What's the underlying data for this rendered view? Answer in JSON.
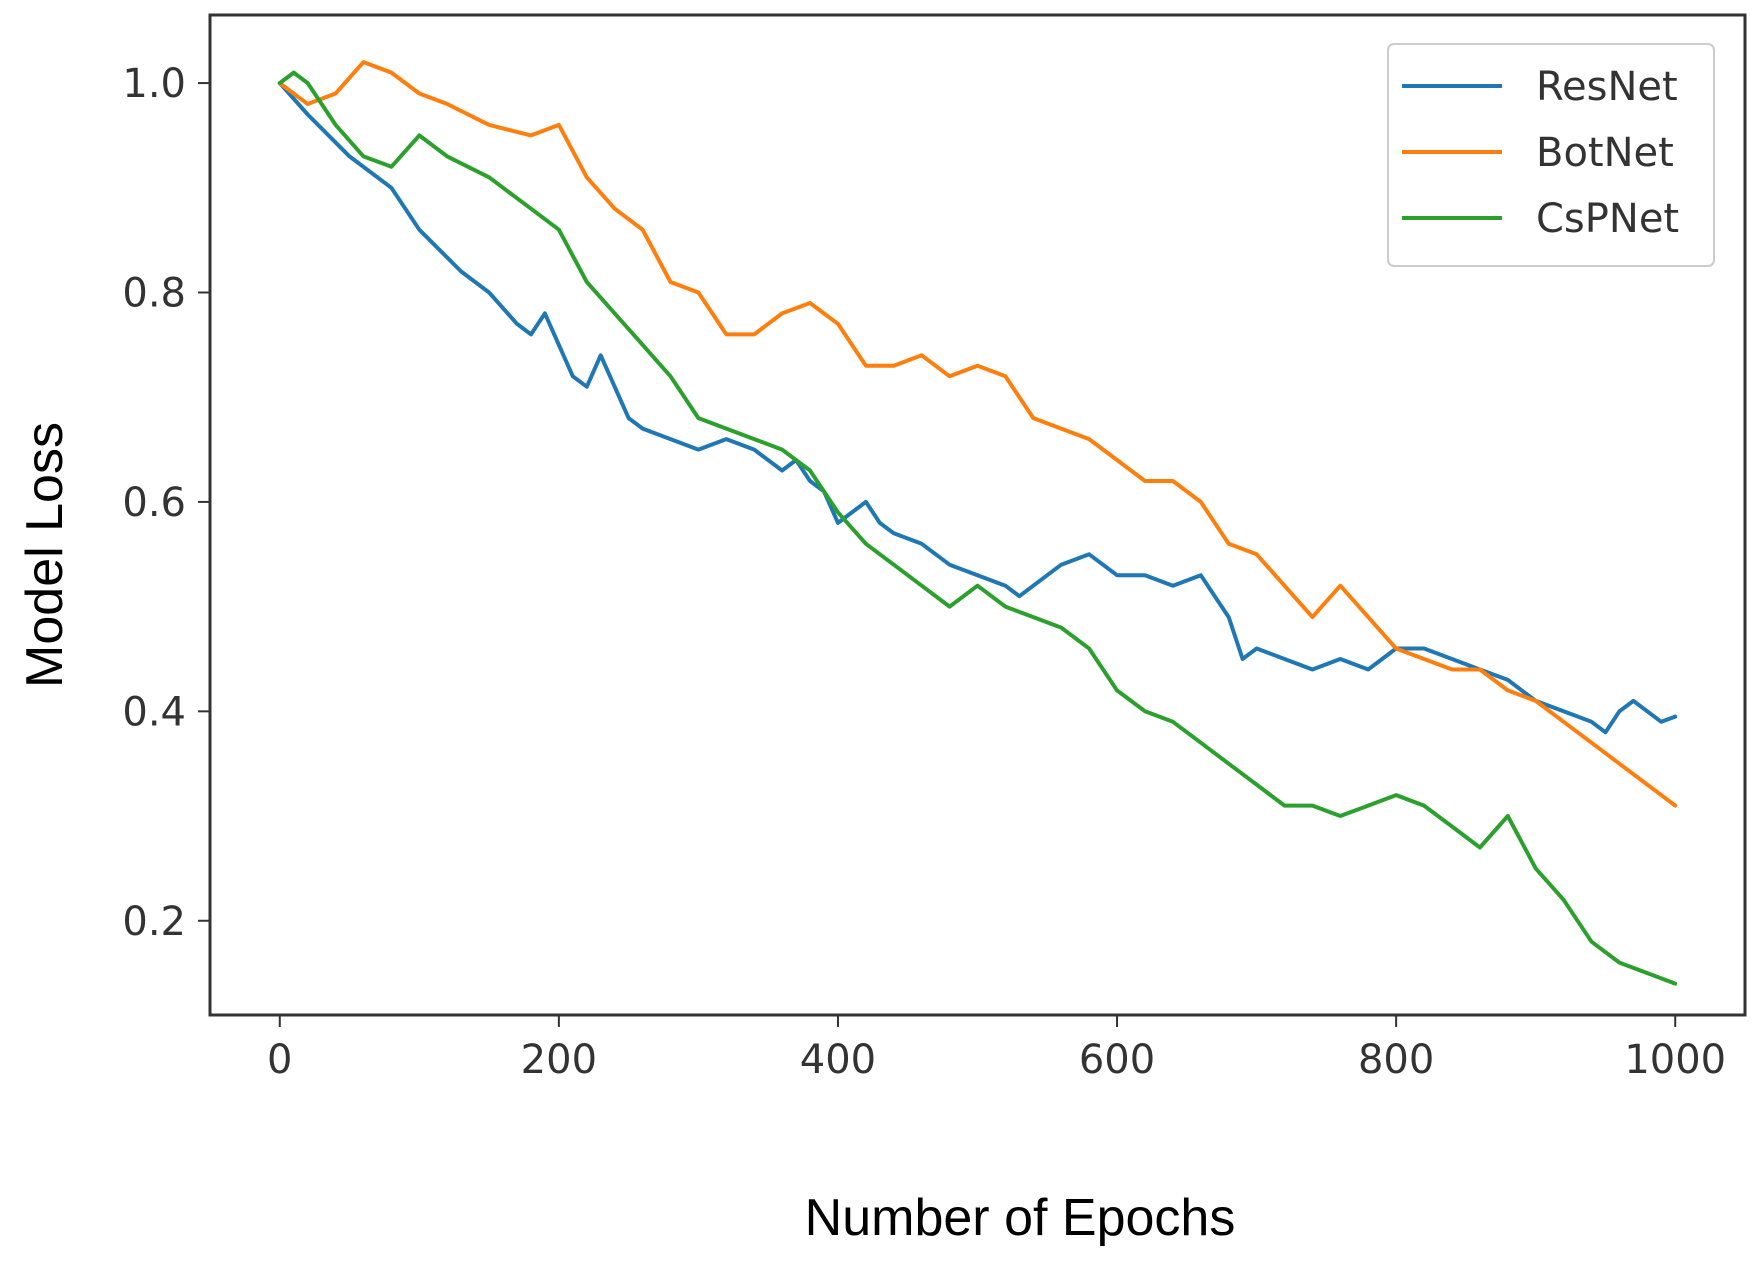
{
  "chart_data": {
    "type": "line",
    "title": "",
    "xlabel": "Number of Epochs",
    "ylabel": "Model Loss",
    "xlim": [
      -50,
      1050
    ],
    "ylim": [
      0.11,
      1.065
    ],
    "xticks": [
      0,
      200,
      400,
      600,
      800,
      1000
    ],
    "yticks": [
      0.2,
      0.4,
      0.6,
      0.8,
      1.0
    ],
    "xtick_labels": [
      "0",
      "200",
      "400",
      "600",
      "800",
      "1000"
    ],
    "ytick_labels": [
      "0.2",
      "0.4",
      "0.6",
      "0.8",
      "1.0"
    ],
    "grid": false,
    "legend_position": "top-right",
    "series": [
      {
        "name": "ResNet",
        "color": "#1f77b4",
        "x": [
          0,
          20,
          50,
          80,
          100,
          130,
          150,
          170,
          180,
          190,
          210,
          220,
          230,
          250,
          260,
          280,
          300,
          320,
          340,
          360,
          370,
          380,
          390,
          400,
          410,
          420,
          430,
          440,
          460,
          480,
          500,
          520,
          530,
          540,
          560,
          580,
          600,
          620,
          640,
          660,
          670,
          680,
          690,
          700,
          720,
          740,
          760,
          780,
          800,
          820,
          840,
          860,
          880,
          900,
          920,
          940,
          950,
          960,
          970,
          980,
          990,
          1000
        ],
        "y": [
          1.0,
          0.97,
          0.93,
          0.9,
          0.86,
          0.82,
          0.8,
          0.77,
          0.76,
          0.78,
          0.72,
          0.71,
          0.74,
          0.68,
          0.67,
          0.66,
          0.65,
          0.66,
          0.65,
          0.63,
          0.64,
          0.62,
          0.61,
          0.58,
          0.59,
          0.6,
          0.58,
          0.57,
          0.56,
          0.54,
          0.53,
          0.52,
          0.51,
          0.52,
          0.54,
          0.55,
          0.53,
          0.53,
          0.52,
          0.53,
          0.51,
          0.49,
          0.45,
          0.46,
          0.45,
          0.44,
          0.45,
          0.44,
          0.46,
          0.46,
          0.45,
          0.44,
          0.43,
          0.41,
          0.4,
          0.39,
          0.38,
          0.4,
          0.41,
          0.4,
          0.39,
          0.395
        ]
      },
      {
        "name": "BotNet",
        "color": "#ff7f0e",
        "x": [
          0,
          20,
          40,
          60,
          80,
          100,
          120,
          150,
          180,
          200,
          220,
          240,
          260,
          280,
          300,
          320,
          340,
          360,
          380,
          400,
          420,
          440,
          460,
          480,
          500,
          520,
          540,
          560,
          580,
          600,
          620,
          640,
          660,
          680,
          700,
          720,
          740,
          760,
          780,
          800,
          820,
          840,
          860,
          880,
          900,
          920,
          940,
          960,
          980,
          1000
        ],
        "y": [
          1.0,
          0.98,
          0.99,
          1.02,
          1.01,
          0.99,
          0.98,
          0.96,
          0.95,
          0.96,
          0.91,
          0.88,
          0.86,
          0.81,
          0.8,
          0.76,
          0.76,
          0.78,
          0.79,
          0.77,
          0.73,
          0.73,
          0.74,
          0.72,
          0.73,
          0.72,
          0.68,
          0.67,
          0.66,
          0.64,
          0.62,
          0.62,
          0.6,
          0.56,
          0.55,
          0.52,
          0.49,
          0.52,
          0.49,
          0.46,
          0.45,
          0.44,
          0.44,
          0.42,
          0.41,
          0.39,
          0.37,
          0.35,
          0.33,
          0.31
        ]
      },
      {
        "name": "CsPNet",
        "color": "#2ca02c",
        "x": [
          0,
          10,
          20,
          40,
          60,
          80,
          100,
          120,
          150,
          180,
          200,
          220,
          240,
          260,
          280,
          300,
          320,
          340,
          360,
          380,
          400,
          420,
          440,
          460,
          480,
          500,
          520,
          540,
          560,
          580,
          600,
          620,
          640,
          660,
          680,
          700,
          720,
          740,
          760,
          780,
          800,
          820,
          840,
          860,
          880,
          900,
          920,
          940,
          960,
          980,
          1000
        ],
        "y": [
          1.0,
          1.01,
          1.0,
          0.96,
          0.93,
          0.92,
          0.95,
          0.93,
          0.91,
          0.88,
          0.86,
          0.81,
          0.78,
          0.75,
          0.72,
          0.68,
          0.67,
          0.66,
          0.65,
          0.63,
          0.59,
          0.56,
          0.54,
          0.52,
          0.5,
          0.52,
          0.5,
          0.49,
          0.48,
          0.46,
          0.42,
          0.4,
          0.39,
          0.37,
          0.35,
          0.33,
          0.31,
          0.31,
          0.3,
          0.31,
          0.32,
          0.31,
          0.29,
          0.27,
          0.3,
          0.25,
          0.22,
          0.18,
          0.16,
          0.15,
          0.14
        ]
      }
    ]
  }
}
